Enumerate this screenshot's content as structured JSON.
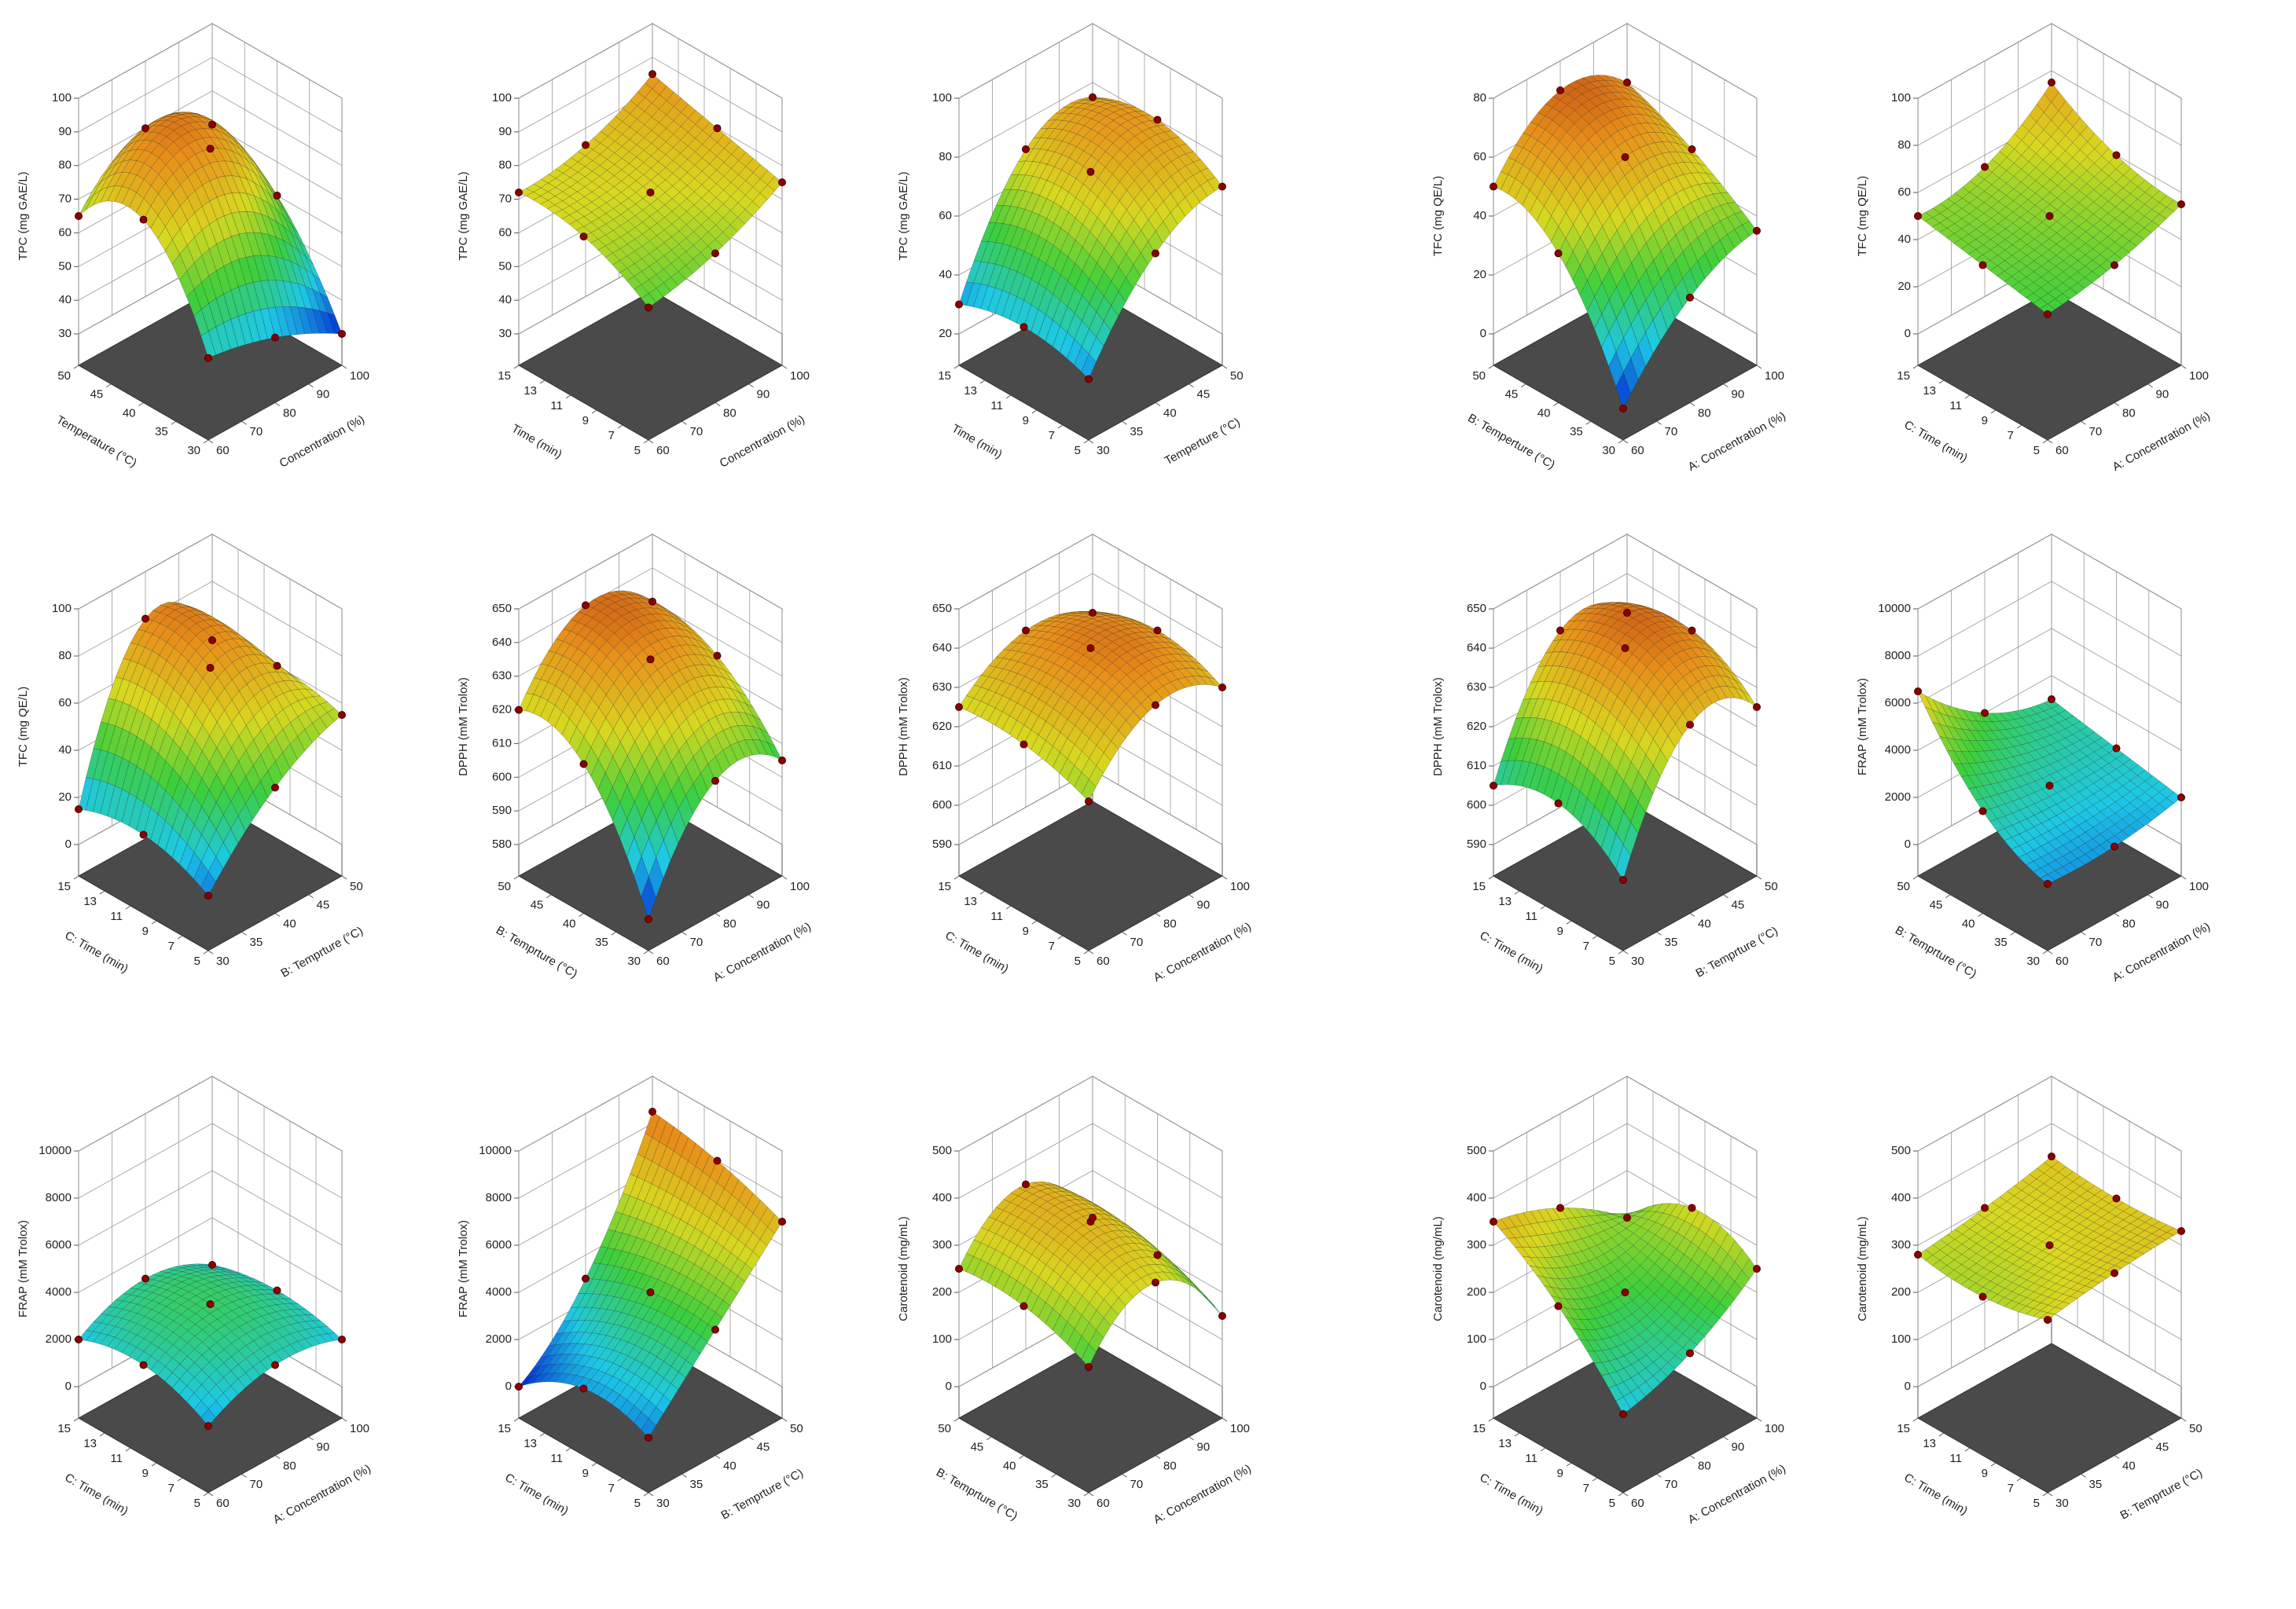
{
  "colormap": [
    "#0020d0",
    "#1ec8e6",
    "#3ccf3c",
    "#d8d820",
    "#e8901a",
    "#b02a10"
  ],
  "chart_data": [
    {
      "type": "surface",
      "zlabel": "TPC (mg GAE/L)",
      "xlabel": "Concentration (%)",
      "ylabel": "Temperature (°C)",
      "xlim": [
        60,
        100
      ],
      "xticks": [
        60,
        70,
        80,
        90,
        100
      ],
      "ylim": [
        30,
        50
      ],
      "yticks": [
        30,
        35,
        40,
        45,
        50
      ],
      "zlim": [
        30,
        100
      ],
      "zticks": [
        30,
        40,
        50,
        60,
        70,
        80,
        90,
        100
      ],
      "z_grid": [
        [
          45,
          40,
          30
        ],
        [
          75,
          85,
          60
        ],
        [
          65,
          80,
          70
        ]
      ]
    },
    {
      "type": "surface",
      "zlabel": "TPC (mg GAE/L)",
      "xlabel": "Concentration (%)",
      "ylabel": "Time (min)",
      "xlim": [
        60,
        100
      ],
      "xticks": [
        60,
        70,
        80,
        90,
        100
      ],
      "ylim": [
        5,
        15
      ],
      "yticks": [
        5,
        7,
        9,
        11,
        13,
        15
      ],
      "zlim": [
        30,
        100
      ],
      "zticks": [
        30,
        40,
        50,
        60,
        70,
        80,
        90,
        100
      ],
      "z_grid": [
        [
          60,
          65,
          75
        ],
        [
          70,
          72,
          80
        ],
        [
          72,
          75,
          85
        ]
      ]
    },
    {
      "type": "surface",
      "zlabel": "TPC (mg GAE/L)",
      "xlabel": "Temperture (°C)",
      "ylabel": "Time (min)",
      "xlim": [
        30,
        50
      ],
      "xticks": [
        30,
        35,
        40,
        45,
        50
      ],
      "ylim": [
        5,
        15
      ],
      "yticks": [
        5,
        7,
        9,
        11,
        13,
        15
      ],
      "zlim": [
        20,
        100
      ],
      "zticks": [
        20,
        40,
        60,
        80,
        100
      ],
      "z_grid": [
        [
          30,
          60,
          70
        ],
        [
          35,
          75,
          80
        ],
        [
          30,
          70,
          75
        ]
      ]
    },
    {
      "type": "surface",
      "zlabel": "TFC (mg QE/L)",
      "xlabel": "A: Concentration (%)",
      "ylabel": "B: Temperture (°C)",
      "xlim": [
        60,
        100
      ],
      "xticks": [
        60,
        70,
        80,
        90,
        100
      ],
      "ylim": [
        30,
        50
      ],
      "yticks": [
        30,
        35,
        40,
        45,
        50
      ],
      "zlim": [
        0,
        80
      ],
      "zticks": [
        0,
        20,
        40,
        60,
        80
      ],
      "z_grid": [
        [
          0,
          25,
          35
        ],
        [
          40,
          60,
          50
        ],
        [
          50,
          70,
          60
        ]
      ]
    },
    {
      "type": "surface",
      "zlabel": "TFC (mg QE/L)",
      "xlabel": "A: Concentration (%)",
      "ylabel": "C: Time (min)",
      "xlim": [
        60,
        100
      ],
      "xticks": [
        60,
        70,
        80,
        90,
        100
      ],
      "ylim": [
        5,
        15
      ],
      "yticks": [
        5,
        7,
        9,
        11,
        13,
        15
      ],
      "zlim": [
        0,
        100
      ],
      "zticks": [
        0,
        20,
        40,
        60,
        80,
        100
      ],
      "z_grid": [
        [
          40,
          45,
          55
        ],
        [
          45,
          50,
          60
        ],
        [
          50,
          55,
          75
        ]
      ]
    },
    {
      "type": "surface",
      "zlabel": "TFC (mg QE/L)",
      "xlabel": "B: Temprture (°C)",
      "ylabel": "C: Time (min)",
      "xlim": [
        30,
        50
      ],
      "xticks": [
        30,
        35,
        40,
        45,
        50
      ],
      "ylim": [
        5,
        15
      ],
      "yticks": [
        5,
        7,
        9,
        11,
        13,
        15
      ],
      "zlim": [
        0,
        100
      ],
      "zticks": [
        0,
        20,
        40,
        60,
        80,
        100
      ],
      "z_grid": [
        [
          10,
          40,
          55
        ],
        [
          20,
          75,
          60
        ],
        [
          15,
          80,
          55
        ]
      ]
    },
    {
      "type": "surface",
      "zlabel": "DPPH (mM Trolox)",
      "xlabel": "A: Concentration (%)",
      "ylabel": "B: Temprture (°C)",
      "xlim": [
        60,
        100
      ],
      "xticks": [
        60,
        70,
        80,
        90,
        100
      ],
      "ylim": [
        30,
        50
      ],
      "yticks": [
        30,
        35,
        40,
        45,
        50
      ],
      "zlim": [
        580,
        650
      ],
      "zticks": [
        580,
        590,
        600,
        610,
        620,
        630,
        640,
        650
      ],
      "z_grid": [
        [
          580,
          610,
          605
        ],
        [
          615,
          635,
          625
        ],
        [
          620,
          640,
          630
        ]
      ]
    },
    {
      "type": "surface",
      "zlabel": "DPPH (mM Trolox)",
      "xlabel": "A: Concentration (%)",
      "ylabel": "C: Time (min)",
      "xlim": [
        60,
        100
      ],
      "xticks": [
        60,
        70,
        80,
        90,
        100
      ],
      "ylim": [
        5,
        15
      ],
      "yticks": [
        5,
        7,
        9,
        11,
        13,
        15
      ],
      "zlim": [
        590,
        650
      ],
      "zticks": [
        590,
        600,
        610,
        620,
        630,
        640,
        650
      ],
      "z_grid": [
        [
          620,
          635,
          630
        ],
        [
          625,
          640,
          635
        ],
        [
          625,
          635,
          630
        ]
      ]
    },
    {
      "type": "surface",
      "zlabel": "DPPH (mM Trolox)",
      "xlabel": "B: Temprture (°C)",
      "ylabel": "C: Time (min)",
      "xlim": [
        30,
        50
      ],
      "xticks": [
        30,
        35,
        40,
        45,
        50
      ],
      "ylim": [
        5,
        15
      ],
      "yticks": [
        5,
        7,
        9,
        11,
        13,
        15
      ],
      "zlim": [
        590,
        650
      ],
      "zticks": [
        590,
        600,
        610,
        620,
        630,
        640,
        650
      ],
      "z_grid": [
        [
          600,
          630,
          625
        ],
        [
          610,
          640,
          635
        ],
        [
          605,
          635,
          630
        ]
      ]
    },
    {
      "type": "surface",
      "zlabel": "FRAP (mM Trolox)",
      "xlabel": "A: Concentration (%)",
      "ylabel": "B: Temprture (°C)",
      "xlim": [
        60,
        100
      ],
      "xticks": [
        60,
        70,
        80,
        90,
        100
      ],
      "ylim": [
        30,
        50
      ],
      "yticks": [
        30,
        35,
        40,
        45,
        50
      ],
      "zlim": [
        0,
        10000
      ],
      "zticks": [
        0,
        2000,
        4000,
        6000,
        8000,
        10000
      ],
      "z_grid": [
        [
          1500,
          1500,
          2000
        ],
        [
          3000,
          2500,
          2500
        ],
        [
          6500,
          4000,
          3000
        ]
      ]
    },
    {
      "type": "surface",
      "zlabel": "FRAP (mM Trolox)",
      "xlabel": "A: Concentration (%)",
      "ylabel": "C: Time (min)",
      "xlim": [
        60,
        100
      ],
      "xticks": [
        60,
        70,
        80,
        90,
        100
      ],
      "ylim": [
        5,
        15
      ],
      "yticks": [
        5,
        7,
        9,
        11,
        13,
        15
      ],
      "zlim": [
        0,
        10000
      ],
      "zticks": [
        0,
        2000,
        4000,
        6000,
        8000,
        10000
      ],
      "z_grid": [
        [
          1500,
          2500,
          2000
        ],
        [
          2500,
          3500,
          2500
        ],
        [
          2000,
          3000,
          2000
        ]
      ]
    },
    {
      "type": "surface",
      "zlabel": "FRAP (mM Trolox)",
      "xlabel": "B: Temprture (°C)",
      "ylabel": "C: Time (min)",
      "xlim": [
        30,
        50
      ],
      "xticks": [
        30,
        35,
        40,
        45,
        50
      ],
      "ylim": [
        5,
        15
      ],
      "yticks": [
        5,
        7,
        9,
        11,
        13,
        15
      ],
      "zlim": [
        0,
        10000
      ],
      "zticks": [
        0,
        2000,
        4000,
        6000,
        8000,
        10000
      ],
      "z_grid": [
        [
          1000,
          4000,
          7000
        ],
        [
          1500,
          4000,
          8000
        ],
        [
          0,
          3000,
          8500
        ]
      ]
    },
    {
      "type": "surface",
      "zlabel": "Carotenoid (mg/mL)",
      "xlabel": "A: Concentration (%)",
      "ylabel": "B: Temprture (°C)",
      "xlim": [
        60,
        100
      ],
      "xticks": [
        60,
        70,
        80,
        90,
        100
      ],
      "ylim": [
        30,
        50
      ],
      "yticks": [
        30,
        35,
        40,
        45,
        50
      ],
      "zlim": [
        0,
        500
      ],
      "zticks": [
        0,
        100,
        200,
        300,
        400,
        500
      ],
      "z_grid": [
        [
          200,
          300,
          150
        ],
        [
          250,
          350,
          200
        ],
        [
          250,
          350,
          200
        ]
      ]
    },
    {
      "type": "surface",
      "zlabel": "Carotenoid (mg/mL)",
      "xlabel": "A: Concentration (%)",
      "ylabel": "C: Time (min)",
      "xlim": [
        60,
        100
      ],
      "xticks": [
        60,
        70,
        80,
        90,
        100
      ],
      "ylim": [
        5,
        15
      ],
      "yticks": [
        5,
        7,
        9,
        11,
        13,
        15
      ],
      "zlim": [
        0,
        500
      ],
      "zticks": [
        0,
        100,
        200,
        300,
        400,
        500
      ],
      "z_grid": [
        [
          100,
          150,
          250
        ],
        [
          250,
          200,
          300
        ],
        [
          350,
          300,
          200
        ]
      ]
    },
    {
      "type": "surface",
      "zlabel": "Carotenoid (mg/mL)",
      "xlabel": "B: Temprture (°C)",
      "ylabel": "C: Time (min)",
      "xlim": [
        30,
        50
      ],
      "xticks": [
        30,
        35,
        40,
        45,
        50
      ],
      "ylim": [
        5,
        15
      ],
      "yticks": [
        5,
        7,
        9,
        11,
        13,
        15
      ],
      "zlim": [
        0,
        500
      ],
      "zticks": [
        0,
        100,
        200,
        300,
        400,
        500
      ],
      "z_grid": [
        [
          300,
          320,
          330
        ],
        [
          270,
          300,
          320
        ],
        [
          280,
          300,
          330
        ]
      ]
    }
  ]
}
